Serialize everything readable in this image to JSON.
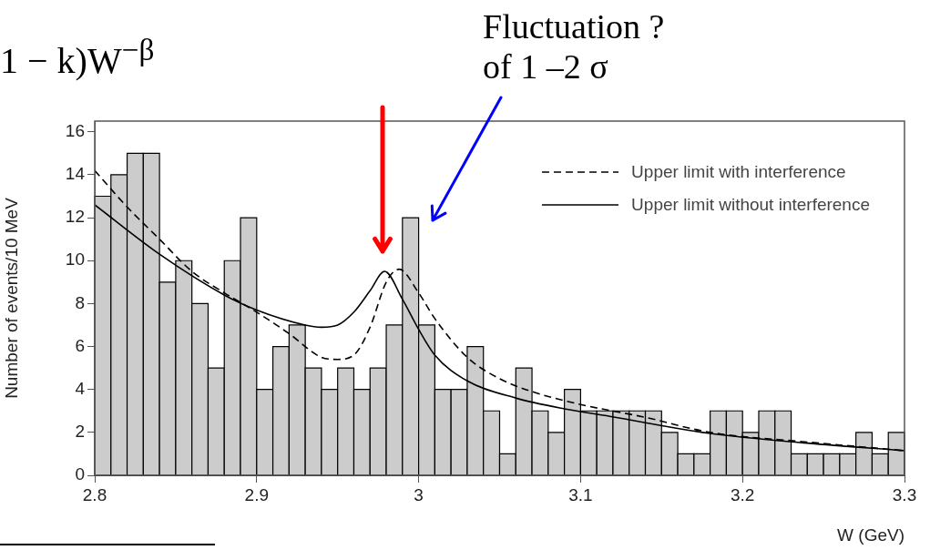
{
  "chart_data": {
    "type": "histogram",
    "xlabel": "W (GeV)",
    "ylabel": "Number of events/10 MeV",
    "bins": [
      2.8,
      2.81,
      2.82,
      2.83,
      2.84,
      2.85,
      2.86,
      2.87,
      2.88,
      2.89,
      2.9,
      2.91,
      2.92,
      2.93,
      2.94,
      2.95,
      2.96,
      2.97,
      2.98,
      2.99,
      3.0,
      3.01,
      3.02,
      3.03,
      3.04,
      3.05,
      3.06,
      3.07,
      3.08,
      3.09,
      3.1,
      3.11,
      3.12,
      3.13,
      3.14,
      3.15,
      3.16,
      3.17,
      3.18,
      3.19,
      3.2,
      3.21,
      3.22,
      3.23,
      3.24,
      3.25,
      3.26,
      3.27,
      3.28,
      3.29,
      3.3
    ],
    "values": [
      13,
      14,
      15,
      15,
      9,
      10,
      8,
      5,
      10,
      12,
      4,
      6,
      7,
      5,
      4,
      5,
      4,
      5,
      7,
      12,
      7,
      4,
      4,
      6,
      3,
      1,
      5,
      3,
      2,
      4,
      3,
      3,
      3,
      3,
      3,
      2,
      1,
      1,
      3,
      3,
      2,
      3,
      3,
      1,
      1,
      1,
      1,
      2,
      1,
      2
    ],
    "color": "#cccccc",
    "series": [
      {
        "type": "line",
        "name": "Upper limit with interference",
        "color": "#000000",
        "line_style": "dashed",
        "x": [
          2.8,
          2.82,
          2.84,
          2.86,
          2.88,
          2.9,
          2.92,
          2.94,
          2.95,
          2.96,
          2.97,
          2.98,
          2.988,
          3.0,
          3.01,
          3.03,
          3.05,
          3.07,
          3.1,
          3.14,
          3.18,
          3.24,
          3.3
        ],
        "values": [
          14.2,
          12.5,
          11.0,
          9.5,
          8.5,
          7.6,
          6.6,
          5.5,
          5.4,
          5.6,
          6.9,
          9.0,
          9.6,
          8.5,
          7.3,
          5.5,
          4.5,
          3.9,
          3.3,
          2.7,
          2.0,
          1.55,
          1.15
        ]
      },
      {
        "type": "line",
        "name": "Upper limit without interference",
        "color": "#000000",
        "line_style": "solid",
        "x": [
          2.8,
          2.84,
          2.88,
          2.9,
          2.93,
          2.94,
          2.95,
          2.96,
          2.97,
          2.979,
          2.99,
          3.0,
          3.01,
          3.03,
          3.06,
          3.09,
          3.118,
          3.18,
          3.24,
          3.3
        ],
        "values": [
          12.6,
          10.3,
          8.4,
          7.7,
          7.0,
          6.9,
          7.0,
          7.6,
          8.6,
          9.5,
          8.2,
          6.8,
          5.6,
          4.4,
          3.6,
          3.1,
          2.75,
          1.95,
          1.5,
          1.15
        ]
      }
    ],
    "xlim": [
      2.8,
      3.3
    ],
    "xticks": [
      2.8,
      2.9,
      3,
      3.1,
      3.2,
      3.3
    ],
    "ylim": [
      0,
      16.5
    ],
    "yticks": [
      0,
      2,
      4,
      6,
      8,
      10,
      12,
      14,
      16
    ],
    "legend": "top right",
    "marker": "none",
    "annotations": [
      "1 − k)W$^{−β}$",
      "Fluctuation ?\nof 1 –2 σ"
    ]
  }
}
